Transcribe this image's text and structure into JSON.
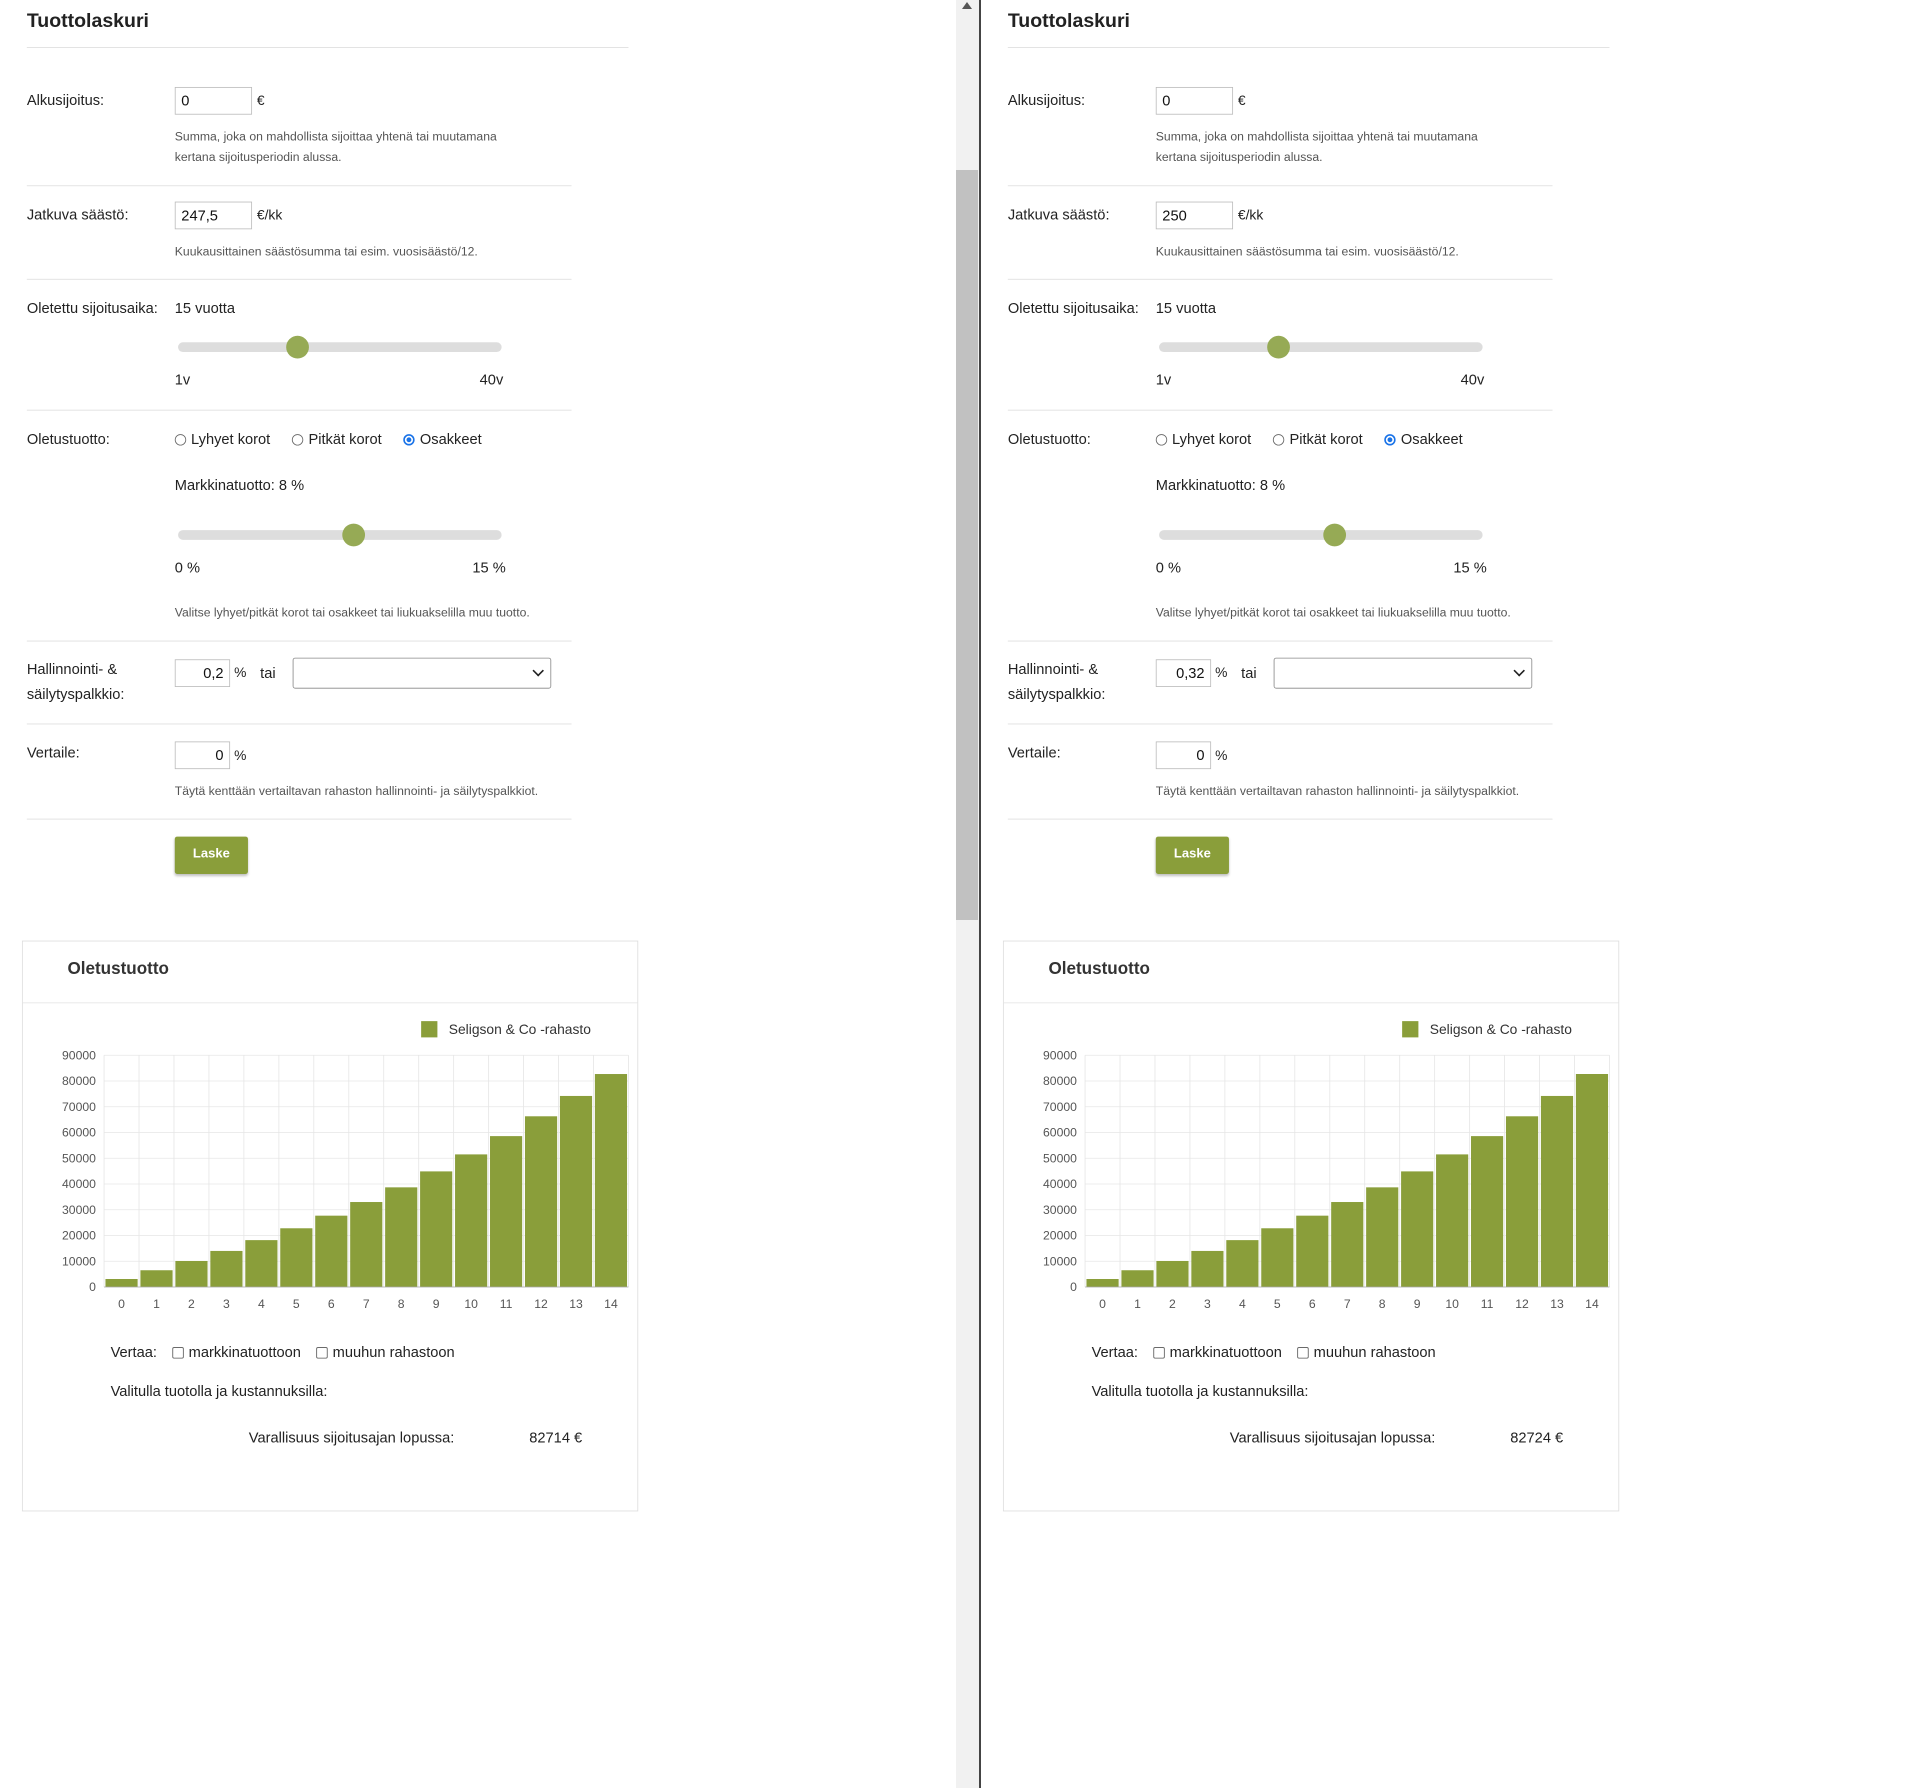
{
  "colors": {
    "accent": "#8a9e3a",
    "slider_knob": "#96aa55",
    "radio_selected": "#1a73e8"
  },
  "panes": [
    {
      "title": "Tuottolaskuri",
      "initial": {
        "label": "Alkusijoitus:",
        "value": "0",
        "unit": "€",
        "help_line1": "Summa, joka on mahdollista sijoittaa yhtenä tai muutamana",
        "help_line2": "kertana sijoitusperiodin alussa."
      },
      "monthly": {
        "label": "Jatkuva säästö:",
        "value": "247,5",
        "unit": "€/kk",
        "help": "Kuukausittainen säästösumma tai esim. vuosisäästö/12."
      },
      "period": {
        "label": "Oletettu sijoitusaika:",
        "value_text": "15 vuotta",
        "min_label": "1v",
        "max_label": "40v",
        "value": 15,
        "min": 1,
        "max": 40
      },
      "yield": {
        "label": "Oletustuotto:",
        "options": [
          "Lyhyet korot",
          "Pitkät korot",
          "Osakkeet"
        ],
        "selected": 2,
        "market_text": "Markkinatuotto: 8 %",
        "value": 8,
        "min": 0,
        "max": 15,
        "min_label": "0 %",
        "max_label": "15 %",
        "help": "Valitse lyhyet/pitkät korot tai osakkeet tai liukuakselilla muu tuotto."
      },
      "fee": {
        "label_line1": "Hallinnointi- &",
        "label_line2": "säilytyspalkkio:",
        "value": "0,2",
        "unit": "%",
        "or": "tai",
        "select_value": ""
      },
      "compare": {
        "label": "Vertaile:",
        "value": "0",
        "unit": "%",
        "help": "Täytä kenttään vertailtavan rahaston hallinnointi- ja säilytyspalkkiot."
      },
      "button": "Laske",
      "card": {
        "title": "Oletustuotto",
        "legend": "Seligson & Co -rahasto",
        "compare_label": "Vertaa:",
        "compare_opt1": "markkinatuottoon",
        "compare_opt2": "muuhun rahastoon",
        "selected_text": "Valitulla tuotolla ja kustannuksilla:",
        "wealth_label": "Varallisuus sijoitusajan lopussa:",
        "wealth_value": "82714 €"
      },
      "chart_data": {
        "type": "bar",
        "categories": [
          "0",
          "1",
          "2",
          "3",
          "4",
          "5",
          "6",
          "7",
          "8",
          "9",
          "10",
          "11",
          "12",
          "13",
          "14"
        ],
        "series": [
          {
            "name": "Seligson & Co -rahasto",
            "values": [
              3100,
              6500,
              10100,
              14000,
              18200,
              22800,
              27700,
              33000,
              38700,
              44900,
              51500,
              58600,
              66300,
              74200,
              82714
            ]
          }
        ],
        "yticks": [
          "0",
          "10000",
          "20000",
          "30000",
          "40000",
          "50000",
          "60000",
          "70000",
          "80000",
          "90000"
        ],
        "ylim": [
          0,
          90000
        ],
        "grid": true
      }
    },
    {
      "title": "Tuottolaskuri",
      "initial": {
        "label": "Alkusijoitus:",
        "value": "0",
        "unit": "€",
        "help_line1": "Summa, joka on mahdollista sijoittaa yhtenä tai muutamana",
        "help_line2": "kertana sijoitusperiodin alussa."
      },
      "monthly": {
        "label": "Jatkuva säästö:",
        "value": "250",
        "unit": "€/kk",
        "help": "Kuukausittainen säästösumma tai esim. vuosisäästö/12."
      },
      "period": {
        "label": "Oletettu sijoitusaika:",
        "value_text": "15 vuotta",
        "min_label": "1v",
        "max_label": "40v",
        "value": 15,
        "min": 1,
        "max": 40
      },
      "yield": {
        "label": "Oletustuotto:",
        "options": [
          "Lyhyet korot",
          "Pitkät korot",
          "Osakkeet"
        ],
        "selected": 2,
        "market_text": "Markkinatuotto: 8 %",
        "value": 8,
        "min": 0,
        "max": 15,
        "min_label": "0 %",
        "max_label": "15 %",
        "help": "Valitse lyhyet/pitkät korot tai osakkeet tai liukuakselilla muu tuotto."
      },
      "fee": {
        "label_line1": "Hallinnointi- &",
        "label_line2": "säilytyspalkkio:",
        "value": "0,32",
        "unit": "%",
        "or": "tai",
        "select_value": ""
      },
      "compare": {
        "label": "Vertaile:",
        "value": "0",
        "unit": "%",
        "help": "Täytä kenttään vertailtavan rahaston hallinnointi- ja säilytyspalkkiot."
      },
      "button": "Laske",
      "card": {
        "title": "Oletustuotto",
        "legend": "Seligson & Co -rahasto",
        "compare_label": "Vertaa:",
        "compare_opt1": "markkinatuottoon",
        "compare_opt2": "muuhun rahastoon",
        "selected_text": "Valitulla tuotolla ja kustannuksilla:",
        "wealth_label": "Varallisuus sijoitusajan lopussa:",
        "wealth_value": "82724 €"
      },
      "chart_data": {
        "type": "bar",
        "categories": [
          "0",
          "1",
          "2",
          "3",
          "4",
          "5",
          "6",
          "7",
          "8",
          "9",
          "10",
          "11",
          "12",
          "13",
          "14"
        ],
        "series": [
          {
            "name": "Seligson & Co -rahasto",
            "values": [
              3100,
              6500,
              10100,
              14000,
              18200,
              22800,
              27700,
              33000,
              38700,
              44900,
              51500,
              58600,
              66300,
              74200,
              82724
            ]
          }
        ],
        "yticks": [
          "0",
          "10000",
          "20000",
          "30000",
          "40000",
          "50000",
          "60000",
          "70000",
          "80000",
          "90000"
        ],
        "ylim": [
          0,
          90000
        ],
        "grid": true
      }
    }
  ]
}
